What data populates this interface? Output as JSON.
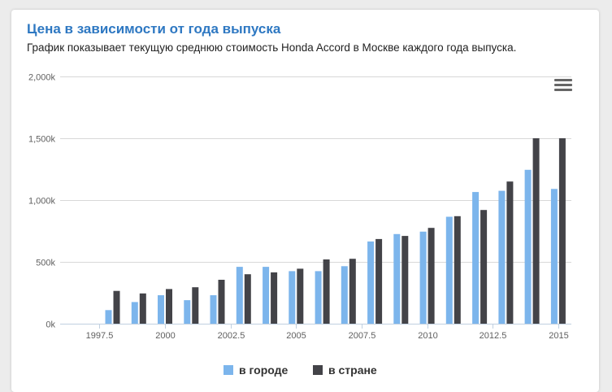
{
  "title": "Цена в зависимости от года выпуска",
  "subtitle": "График показывает текущую среднюю стоимость Honda Accord в Москве каждого года выпуска.",
  "colors": {
    "city": "#7cb5ec",
    "country": "#434348",
    "title": "#2e78c2"
  },
  "menu_icon": "hamburger-menu-icon",
  "chart_data": {
    "type": "bar",
    "xlim": [
      1996,
      2015.5
    ],
    "ylim": [
      0,
      2000
    ],
    "y_ticks": [
      0,
      500,
      1000,
      1500,
      2000
    ],
    "y_tick_labels": [
      "0k",
      "500k",
      "1,000k",
      "1,500k",
      "2,000k"
    ],
    "x_ticks": [
      1997.5,
      2000,
      2002.5,
      2005,
      2007.5,
      2010,
      2012.5,
      2015
    ],
    "x_tick_labels": [
      "1997.5",
      "2000",
      "2002.5",
      "2005",
      "2007.5",
      "2010",
      "2012.5",
      "2015"
    ],
    "grid": true,
    "legend_position": "bottom-center",
    "categories": [
      1998,
      1999,
      2000,
      2001,
      2002,
      2003,
      2004,
      2005,
      2006,
      2007,
      2008,
      2009,
      2010,
      2011,
      2012,
      2013,
      2014,
      2015
    ],
    "series": [
      {
        "name": "в городе",
        "color": "#7cb5ec",
        "values": [
          110,
          175,
          230,
          190,
          230,
          460,
          460,
          425,
          425,
          465,
          665,
          725,
          745,
          865,
          1065,
          1075,
          1245,
          1090
        ]
      },
      {
        "name": "в стране",
        "color": "#434348",
        "values": [
          265,
          245,
          280,
          295,
          355,
          400,
          415,
          445,
          520,
          525,
          685,
          710,
          775,
          870,
          920,
          1150,
          1500,
          1500
        ]
      }
    ]
  }
}
